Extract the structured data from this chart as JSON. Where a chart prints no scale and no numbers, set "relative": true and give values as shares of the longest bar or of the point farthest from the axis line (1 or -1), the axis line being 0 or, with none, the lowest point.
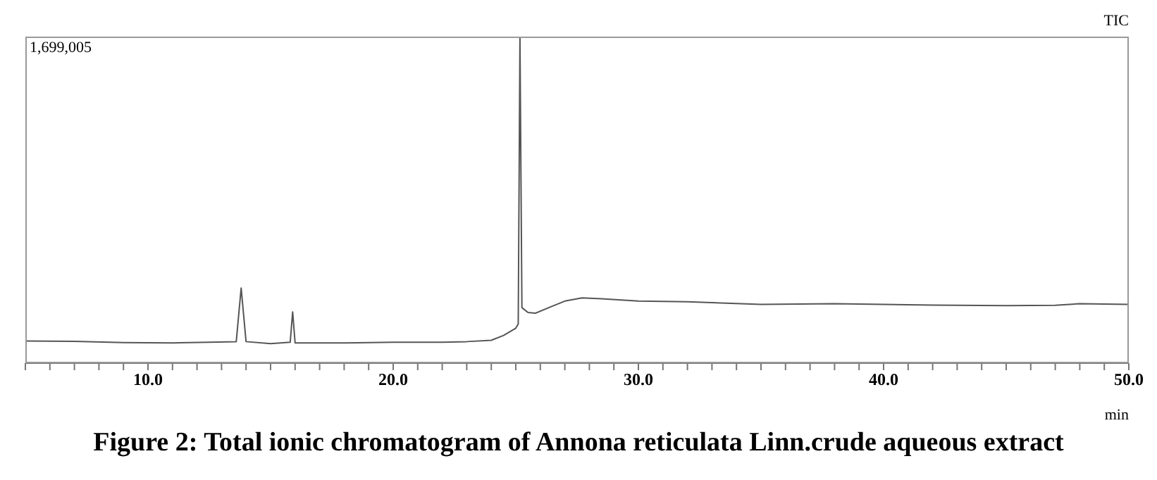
{
  "chart_data": {
    "type": "line",
    "title": "Figure 2: Total ionic chromatogram of Annona reticulata Linn.crude aqueous extract",
    "xlabel": "min",
    "annotations": [
      "1,699,005",
      "TIC"
    ],
    "relative": true,
    "marker": "none",
    "line_style": "solid",
    "xlim": [
      5,
      50
    ],
    "xticks": [
      {
        "value": 5,
        "label": null
      },
      {
        "value": 6,
        "label": null
      },
      {
        "value": 7,
        "label": null
      },
      {
        "value": 8,
        "label": null
      },
      {
        "value": 9,
        "label": null
      },
      {
        "value": 10,
        "label": "10.0"
      },
      {
        "value": 11,
        "label": null
      },
      {
        "value": 12,
        "label": null
      },
      {
        "value": 13,
        "label": null
      },
      {
        "value": 14,
        "label": null
      },
      {
        "value": 15,
        "label": null
      },
      {
        "value": 16,
        "label": null
      },
      {
        "value": 17,
        "label": null
      },
      {
        "value": 18,
        "label": null
      },
      {
        "value": 19,
        "label": null
      },
      {
        "value": 20,
        "label": "20.0"
      },
      {
        "value": 21,
        "label": null
      },
      {
        "value": 22,
        "label": null
      },
      {
        "value": 23,
        "label": null
      },
      {
        "value": 24,
        "label": null
      },
      {
        "value": 25,
        "label": null
      },
      {
        "value": 26,
        "label": null
      },
      {
        "value": 27,
        "label": null
      },
      {
        "value": 28,
        "label": null
      },
      {
        "value": 29,
        "label": null
      },
      {
        "value": 30,
        "label": "30.0"
      },
      {
        "value": 31,
        "label": null
      },
      {
        "value": 32,
        "label": null
      },
      {
        "value": 33,
        "label": null
      },
      {
        "value": 34,
        "label": null
      },
      {
        "value": 35,
        "label": null
      },
      {
        "value": 36,
        "label": null
      },
      {
        "value": 37,
        "label": null
      },
      {
        "value": 38,
        "label": null
      },
      {
        "value": 39,
        "label": null
      },
      {
        "value": 40,
        "label": "40.0"
      },
      {
        "value": 41,
        "label": null
      },
      {
        "value": 42,
        "label": null
      },
      {
        "value": 43,
        "label": null
      },
      {
        "value": 44,
        "label": null
      },
      {
        "value": 45,
        "label": null
      },
      {
        "value": 46,
        "label": null
      },
      {
        "value": 47,
        "label": null
      },
      {
        "value": 48,
        "label": null
      },
      {
        "value": 49,
        "label": null
      },
      {
        "value": 50,
        "label": "50.0"
      }
    ],
    "x": [
      5,
      7,
      9,
      11,
      12.5,
      13.6,
      13.8,
      14,
      15,
      15.8,
      15.9,
      16,
      18,
      20,
      22,
      23,
      24,
      24.5,
      25,
      25.1,
      25.17,
      25.25,
      25.5,
      25.8,
      26.5,
      27,
      27.7,
      28.5,
      30,
      32,
      35,
      38,
      40,
      42,
      45,
      47,
      48,
      50
    ],
    "series": [
      {
        "color": "#555555",
        "values": [
          0.068,
          0.067,
          0.063,
          0.062,
          0.064,
          0.066,
          0.23,
          0.066,
          0.06,
          0.064,
          0.157,
          0.062,
          0.062,
          0.064,
          0.064,
          0.066,
          0.07,
          0.085,
          0.107,
          0.12,
          1,
          0.17,
          0.155,
          0.153,
          0.175,
          0.19,
          0.2,
          0.197,
          0.19,
          0.188,
          0.18,
          0.182,
          0.18,
          0.178,
          0.176,
          0.177,
          0.182,
          0.18
        ]
      }
    ]
  }
}
